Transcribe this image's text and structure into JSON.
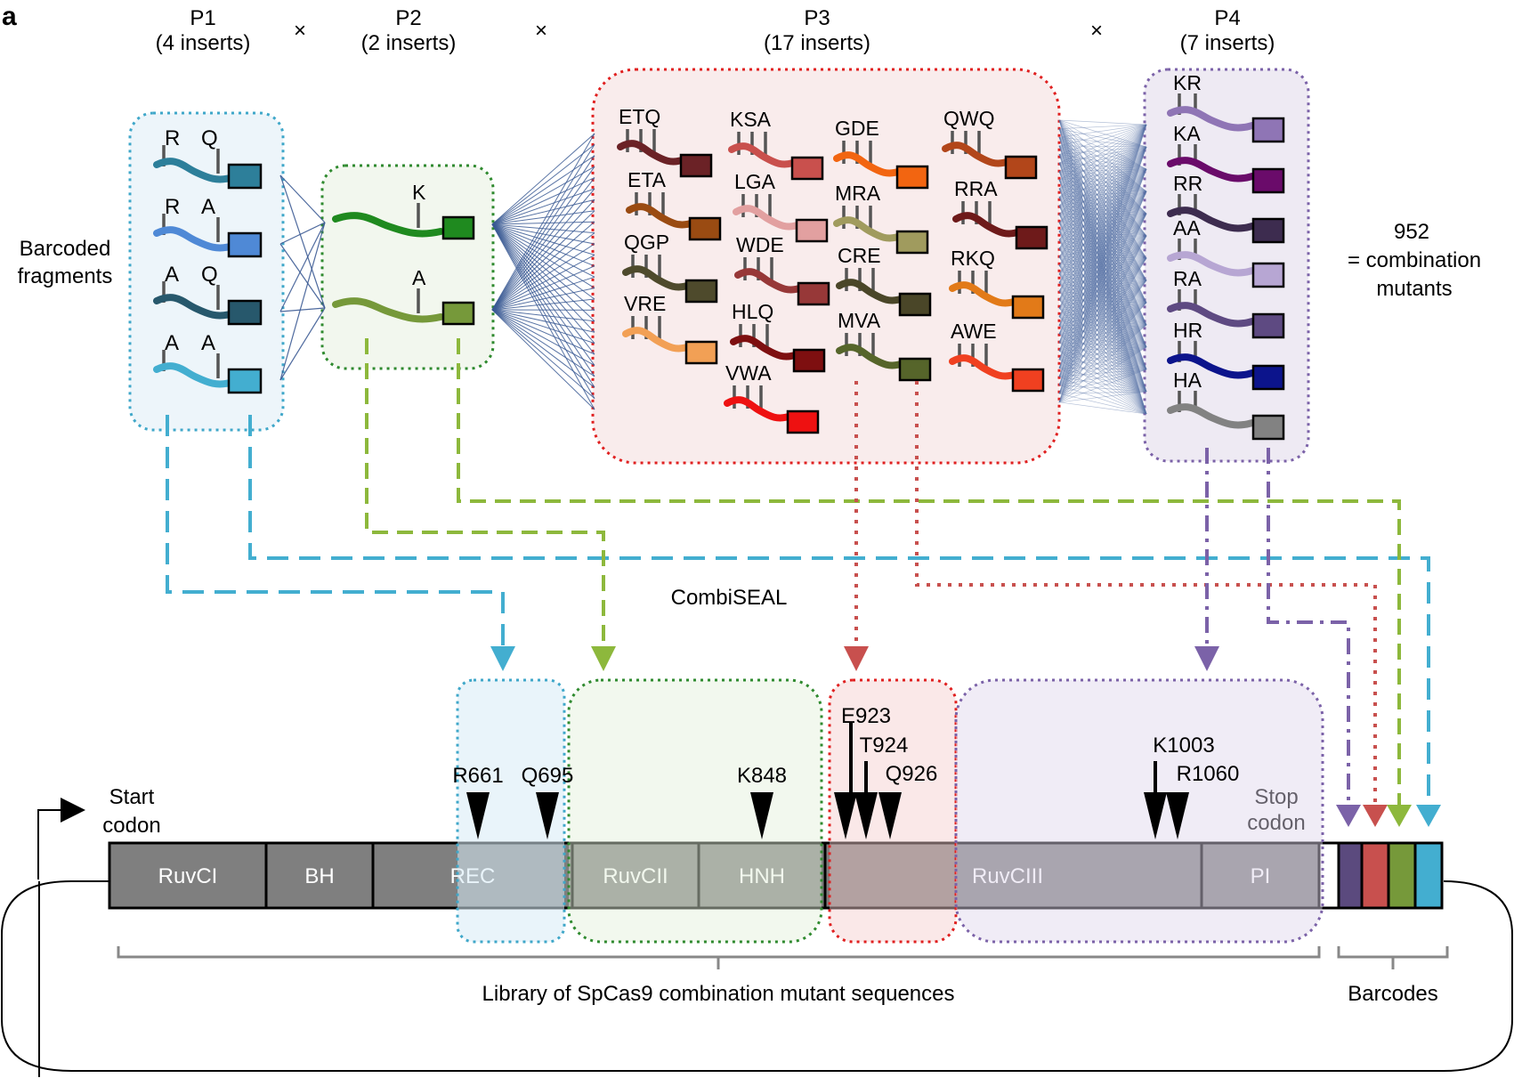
{
  "figure": {
    "panel_letter": "a",
    "times_symbol": "×",
    "pools": [
      {
        "name": "P1",
        "count": "(4 inserts)",
        "color": "#3fa7c9",
        "inserts": [
          {
            "left": "R",
            "right": "Q",
            "color": "#2d7f9a"
          },
          {
            "left": "R",
            "right": "A",
            "color": "#4f89d6"
          },
          {
            "left": "A",
            "right": "Q",
            "color": "#27586c"
          },
          {
            "left": "A",
            "right": "A",
            "color": "#43aed0"
          }
        ]
      },
      {
        "name": "P2",
        "count": "(2 inserts)",
        "color": "#2f8a2f",
        "inserts": [
          {
            "label": "K",
            "color": "#1f8a1f"
          },
          {
            "label": "A",
            "color": "#76993a"
          }
        ]
      },
      {
        "name": "P3",
        "count": "(17 inserts)",
        "color": "#e02020",
        "inserts": [
          {
            "label": "ETQ",
            "color": "#6b2226"
          },
          {
            "label": "ETA",
            "color": "#9a4b12"
          },
          {
            "label": "QGP",
            "color": "#4e4a2c"
          },
          {
            "label": "VRE",
            "color": "#f2a055"
          },
          {
            "label": "KSA",
            "color": "#c9504d"
          },
          {
            "label": "LGA",
            "color": "#e2a0a0"
          },
          {
            "label": "WDE",
            "color": "#973838"
          },
          {
            "label": "HLQ",
            "color": "#7e0f10"
          },
          {
            "label": "VWA",
            "color": "#ee1111"
          },
          {
            "label": "GDE",
            "color": "#f26511"
          },
          {
            "label": "MRA",
            "color": "#a09b5e"
          },
          {
            "label": "CRE",
            "color": "#4a4628"
          },
          {
            "label": "MVA",
            "color": "#56652a"
          },
          {
            "label": "QWQ",
            "color": "#b2461a"
          },
          {
            "label": "RRA",
            "color": "#6e1a1a"
          },
          {
            "label": "RKQ",
            "color": "#e27a18"
          },
          {
            "label": "AWE",
            "color": "#f04020"
          }
        ]
      },
      {
        "name": "P4",
        "count": "(7 inserts)",
        "color": "#7b62a8",
        "inserts": [
          {
            "label": "KR",
            "color": "#8f75b5"
          },
          {
            "label": "KA",
            "color": "#6a0b6a"
          },
          {
            "label": "RR",
            "color": "#3d2c4f"
          },
          {
            "label": "AA",
            "color": "#b7a6d3"
          },
          {
            "label": "RA",
            "color": "#5e4a82"
          },
          {
            "label": "HR",
            "color": "#0c148c"
          },
          {
            "label": "HA",
            "color": "#828282"
          }
        ]
      }
    ],
    "barcoded_fragments_label": [
      "Barcoded",
      "fragments"
    ],
    "combination_result": [
      "952",
      "= combination",
      "mutants"
    ],
    "method_label": "CombiSEAL",
    "start_codon_label": [
      "Start",
      "codon"
    ],
    "stop_codon_label": [
      "Stop",
      "codon"
    ],
    "domains": [
      "RuvCI",
      "BH",
      "REC",
      "RuvCII",
      "HNH",
      "RuvCIII",
      "PI"
    ],
    "mutation_sites": [
      "R661",
      "Q695",
      "K848",
      "E923",
      "T924",
      "Q926",
      "K1003",
      "R1060"
    ],
    "library_label": "Library of SpCas9 combination mutant sequences",
    "barcodes_label": "Barcodes",
    "barcode_colors": [
      "#5b4a7e",
      "#c8504e",
      "#76993a",
      "#43aed0"
    ]
  }
}
